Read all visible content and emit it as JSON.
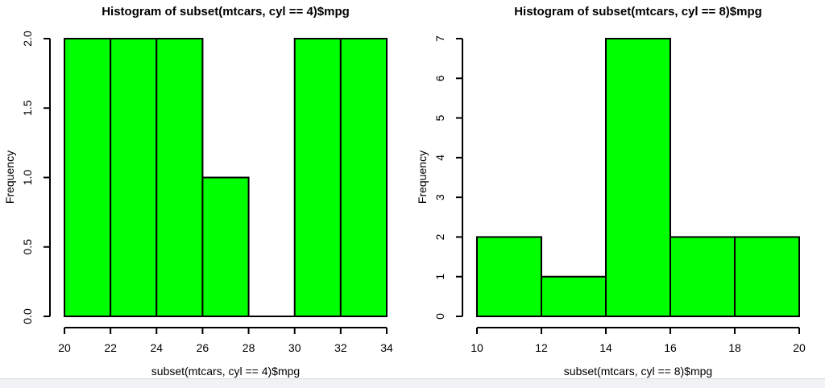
{
  "window": {
    "bottom_strip": {
      "background": "#f1f2f5",
      "border_color": "#d4d8de"
    }
  },
  "chart_data": [
    {
      "type": "bar",
      "subtype": "histogram",
      "title": "Histogram of subset(mtcars, cyl == 4)$mpg",
      "xlabel": "subset(mtcars, cyl == 4)$mpg",
      "ylabel": "Frequency",
      "bin_edges": [
        20,
        22,
        24,
        26,
        28,
        30,
        32,
        34
      ],
      "counts": [
        2,
        2,
        2,
        1,
        0,
        2,
        2
      ],
      "xlim": [
        20,
        34
      ],
      "ylim": [
        0,
        2
      ],
      "x_ticks": [
        20,
        22,
        24,
        26,
        28,
        30,
        32,
        34
      ],
      "x_tick_labels": [
        "20",
        "22",
        "24",
        "26",
        "28",
        "30",
        "32",
        "34"
      ],
      "y_ticks": [
        0,
        0.5,
        1,
        1.5,
        2
      ],
      "y_tick_labels": [
        "0.0",
        "0.5",
        "1.0",
        "1.5",
        "2.0"
      ],
      "bar_fill": "#00ff00",
      "bar_stroke": "#000000",
      "axis_color": "#000000",
      "grid": false,
      "legend": null
    },
    {
      "type": "bar",
      "subtype": "histogram",
      "title": "Histogram of subset(mtcars, cyl == 8)$mpg",
      "xlabel": "subset(mtcars, cyl == 8)$mpg",
      "ylabel": "Frequency",
      "bin_edges": [
        10,
        12,
        14,
        16,
        18,
        20
      ],
      "counts": [
        2,
        1,
        7,
        2,
        2
      ],
      "xlim": [
        10,
        20
      ],
      "ylim": [
        0,
        7
      ],
      "x_ticks": [
        10,
        12,
        14,
        16,
        18,
        20
      ],
      "x_tick_labels": [
        "10",
        "12",
        "14",
        "16",
        "18",
        "20"
      ],
      "y_ticks": [
        0,
        1,
        2,
        3,
        4,
        5,
        6,
        7
      ],
      "y_tick_labels": [
        "0",
        "1",
        "2",
        "3",
        "4",
        "5",
        "6",
        "7"
      ],
      "bar_fill": "#00ff00",
      "bar_stroke": "#000000",
      "axis_color": "#000000",
      "grid": false,
      "legend": null
    }
  ]
}
